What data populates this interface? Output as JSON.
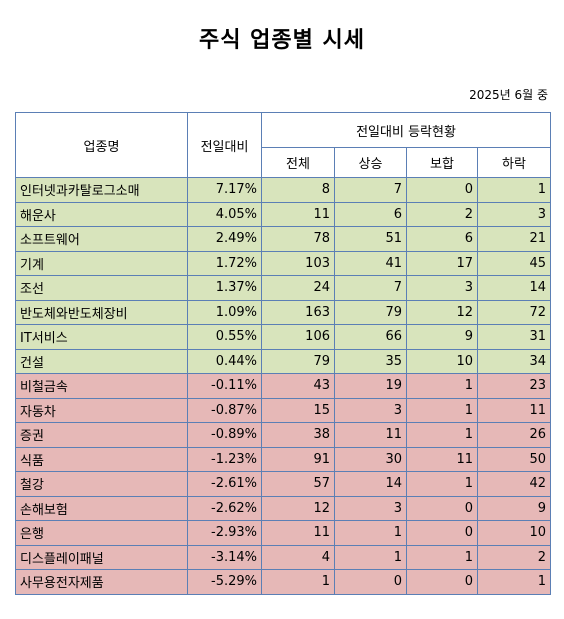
{
  "title": "주식 업종별 시세",
  "date_label": "2025년 6월 중",
  "headers": {
    "sector": "업종명",
    "change": "전일대비",
    "group": "전일대비 등락현황",
    "total": "전체",
    "rise": "상승",
    "flat": "보합",
    "fall": "하락"
  },
  "colors": {
    "rise_row": "#d8e4bc",
    "fall_row": "#e6b8b7",
    "border": "#5b7fb5"
  },
  "rows": [
    {
      "name": "인터넷과카탈로그소매",
      "change": "7.17%",
      "total": "8",
      "rise": "7",
      "flat": "0",
      "fall": "1",
      "trend": "up"
    },
    {
      "name": "해운사",
      "change": "4.05%",
      "total": "11",
      "rise": "6",
      "flat": "2",
      "fall": "3",
      "trend": "up"
    },
    {
      "name": "소프트웨어",
      "change": "2.49%",
      "total": "78",
      "rise": "51",
      "flat": "6",
      "fall": "21",
      "trend": "up"
    },
    {
      "name": "기계",
      "change": "1.72%",
      "total": "103",
      "rise": "41",
      "flat": "17",
      "fall": "45",
      "trend": "up"
    },
    {
      "name": "조선",
      "change": "1.37%",
      "total": "24",
      "rise": "7",
      "flat": "3",
      "fall": "14",
      "trend": "up"
    },
    {
      "name": "반도체와반도체장비",
      "change": "1.09%",
      "total": "163",
      "rise": "79",
      "flat": "12",
      "fall": "72",
      "trend": "up"
    },
    {
      "name": "IT서비스",
      "change": "0.55%",
      "total": "106",
      "rise": "66",
      "flat": "9",
      "fall": "31",
      "trend": "up"
    },
    {
      "name": "건설",
      "change": "0.44%",
      "total": "79",
      "rise": "35",
      "flat": "10",
      "fall": "34",
      "trend": "up"
    },
    {
      "name": "비철금속",
      "change": "-0.11%",
      "total": "43",
      "rise": "19",
      "flat": "1",
      "fall": "23",
      "trend": "down"
    },
    {
      "name": "자동차",
      "change": "-0.87%",
      "total": "15",
      "rise": "3",
      "flat": "1",
      "fall": "11",
      "trend": "down"
    },
    {
      "name": "증권",
      "change": "-0.89%",
      "total": "38",
      "rise": "11",
      "flat": "1",
      "fall": "26",
      "trend": "down"
    },
    {
      "name": "식품",
      "change": "-1.23%",
      "total": "91",
      "rise": "30",
      "flat": "11",
      "fall": "50",
      "trend": "down"
    },
    {
      "name": "철강",
      "change": "-2.61%",
      "total": "57",
      "rise": "14",
      "flat": "1",
      "fall": "42",
      "trend": "down"
    },
    {
      "name": "손해보험",
      "change": "-2.62%",
      "total": "12",
      "rise": "3",
      "flat": "0",
      "fall": "9",
      "trend": "down"
    },
    {
      "name": "은행",
      "change": "-2.93%",
      "total": "11",
      "rise": "1",
      "flat": "0",
      "fall": "10",
      "trend": "down"
    },
    {
      "name": "디스플레이패널",
      "change": "-3.14%",
      "total": "4",
      "rise": "1",
      "flat": "1",
      "fall": "2",
      "trend": "down"
    },
    {
      "name": "사무용전자제품",
      "change": "-5.29%",
      "total": "1",
      "rise": "0",
      "flat": "0",
      "fall": "1",
      "trend": "down"
    }
  ]
}
